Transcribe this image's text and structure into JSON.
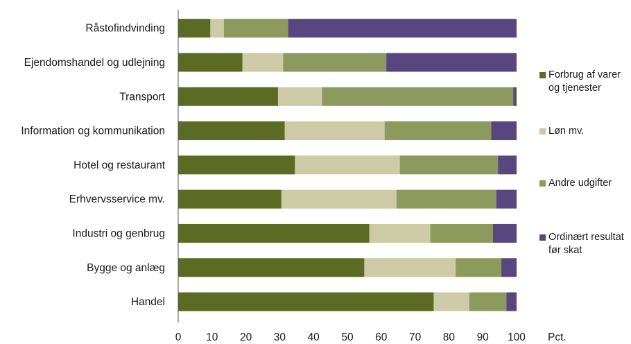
{
  "chart_data": {
    "type": "bar",
    "orientation": "horizontal",
    "stacked": true,
    "categories": [
      "Råstofindvinding",
      "Ejendomshandel og udlejning",
      "Transport",
      "Information og kommunikation",
      "Hotel og restaurant",
      "Erhvervsservice mv.",
      "Industri og genbrug",
      "Bygge og anlæg",
      "Handel"
    ],
    "series": [
      {
        "name": "Forbrug af varer og tjenester",
        "color": "#5c6b24",
        "values": [
          9.5,
          19,
          29.5,
          31.5,
          34.5,
          30.5,
          56.5,
          55,
          75.5
        ]
      },
      {
        "name": "Løn mv.",
        "color": "#cdcaa6",
        "values": [
          4,
          12,
          13,
          29.5,
          31,
          34,
          18,
          27,
          10.5
        ]
      },
      {
        "name": "Andre udgifter",
        "color": "#8d9a5d",
        "values": [
          19,
          30.5,
          56.5,
          31.5,
          29,
          29.5,
          18.5,
          13.5,
          11
        ]
      },
      {
        "name": "Ordinært resultat før skat",
        "color": "#58477f",
        "values": [
          67.5,
          38.5,
          1,
          7.5,
          5.5,
          6,
          7,
          4.5,
          3
        ]
      }
    ],
    "xlim": [
      0,
      100
    ],
    "xticks": [
      "0",
      "10",
      "20",
      "30",
      "40",
      "50",
      "60",
      "70",
      "80",
      "90",
      "100"
    ],
    "xunit": "Pct.",
    "legend": {
      "placement": "right",
      "entries": [
        "Forbrug af varer\nog tjenester",
        "Løn mv.",
        "Andre udgifter",
        "Ordinært resultat\nfør skat"
      ]
    },
    "grid": false
  }
}
